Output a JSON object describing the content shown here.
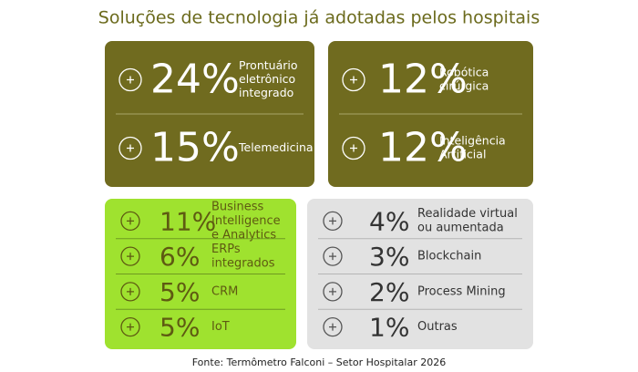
{
  "title": "Soluções de tecnologia já adotadas pelos hospitais",
  "panels": [
    {
      "items": [
        {
          "value": "24%",
          "label": [
            "Prontuário",
            "eletrônico",
            "integrado"
          ]
        },
        {
          "value": "15%",
          "label": [
            "Telemedicina"
          ]
        }
      ]
    },
    {
      "items": [
        {
          "value": "12%",
          "label": [
            "Robótica",
            "cirúrgica"
          ]
        },
        {
          "value": "12%",
          "label": [
            "Inteligência",
            "Artificial"
          ]
        }
      ]
    },
    {
      "items": [
        {
          "value": "11%",
          "label": [
            "Business",
            "Intelligence",
            "e Analytics"
          ]
        },
        {
          "value": "6%",
          "label": [
            "ERPs",
            "integrados"
          ]
        },
        {
          "value": "5%",
          "label": [
            "CRM"
          ]
        },
        {
          "value": "5%",
          "label": [
            "IoT"
          ]
        }
      ]
    },
    {
      "items": [
        {
          "value": "4%",
          "label": [
            "Realidade virtual",
            "ou aumentada"
          ]
        },
        {
          "value": "3%",
          "label": [
            "Blockchain"
          ]
        },
        {
          "value": "2%",
          "label": [
            "Process Mining"
          ]
        },
        {
          "value": "1%",
          "label": [
            "Outras"
          ]
        }
      ]
    }
  ],
  "source": "Fonte: Termômetro Falconi – Setor Hospitalar 2026"
}
